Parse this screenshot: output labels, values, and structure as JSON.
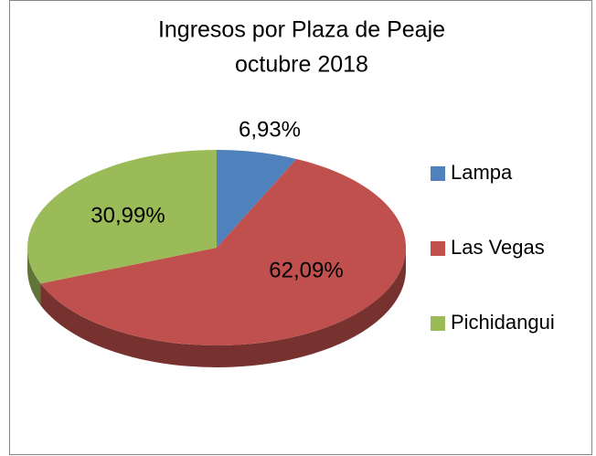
{
  "chart_data": {
    "type": "pie3d",
    "title": "Ingresos por Plaza de Peaje",
    "subtitle": "octubre 2018",
    "categories": [
      "Lampa",
      "Las Vegas",
      "Pichidangui"
    ],
    "values": [
      6.93,
      62.09,
      30.99
    ],
    "value_labels": [
      "6,93%",
      "62,09%",
      "30,99%"
    ],
    "colors": [
      "#4f81bd",
      "#c0504d",
      "#9bbb59"
    ],
    "legend": "right"
  }
}
